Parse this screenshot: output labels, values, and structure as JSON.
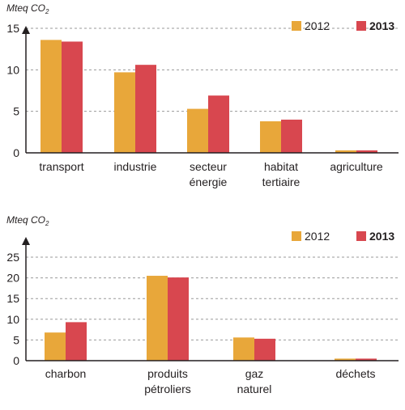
{
  "chart_data": [
    {
      "type": "bar",
      "unit_label": "Mteq CO",
      "unit_subscript": "2",
      "categories": [
        [
          "transport"
        ],
        [
          "industrie"
        ],
        [
          "secteur",
          "énergie"
        ],
        [
          "habitat",
          "tertiaire"
        ],
        [
          "agriculture"
        ]
      ],
      "series": [
        {
          "name": "2012",
          "color": "#e8a73a",
          "values": [
            13.6,
            9.7,
            5.3,
            3.8,
            0.3
          ]
        },
        {
          "name": "2013",
          "color": "#d8474f",
          "values": [
            13.4,
            10.6,
            6.9,
            4.0,
            0.3
          ]
        }
      ],
      "ylim": [
        0,
        15
      ],
      "yticks": [
        0,
        5,
        10,
        15
      ],
      "grid": true,
      "legend_position": "top-right"
    },
    {
      "type": "bar",
      "unit_label": "Mteq CO",
      "unit_subscript": "2",
      "categories": [
        [
          "charbon"
        ],
        [
          "produits",
          "pétroliers"
        ],
        [
          "gaz",
          "naturel"
        ],
        [
          "déchets"
        ]
      ],
      "series": [
        {
          "name": "2012",
          "color": "#e8a73a",
          "values": [
            6.8,
            20.5,
            5.6,
            0.5
          ]
        },
        {
          "name": "2013",
          "color": "#d8474f",
          "values": [
            9.3,
            20.1,
            5.3,
            0.5
          ]
        }
      ],
      "ylim": [
        0,
        25
      ],
      "yticks": [
        0,
        5,
        10,
        15,
        20,
        25
      ],
      "grid": true,
      "legend_position": "top-right"
    }
  ]
}
